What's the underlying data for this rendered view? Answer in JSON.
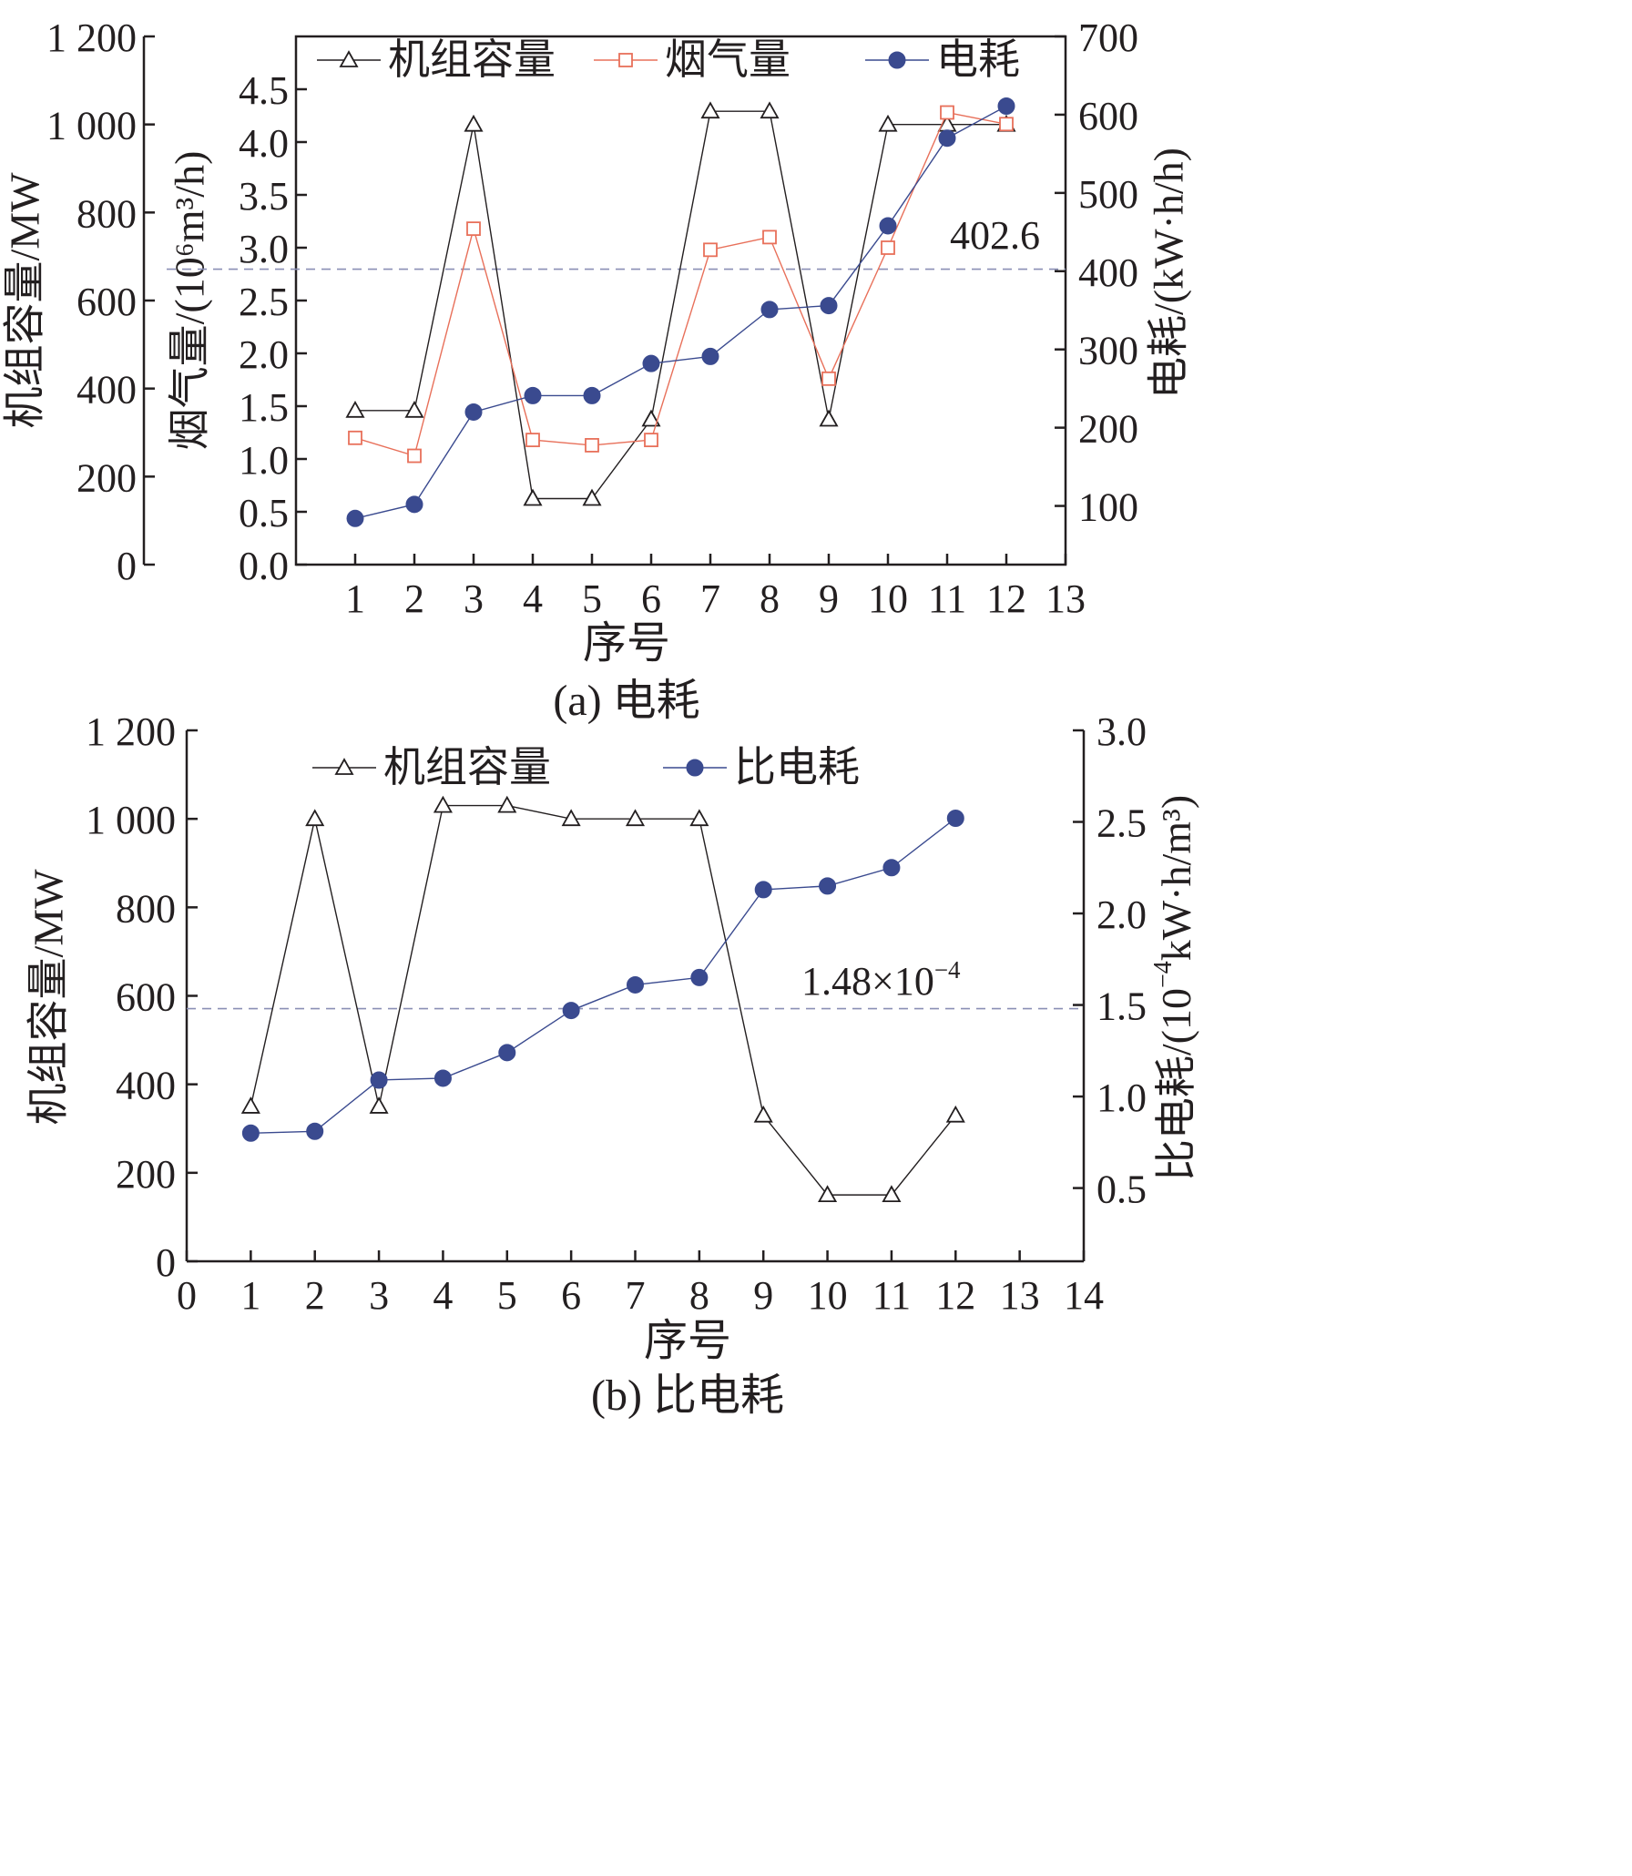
{
  "chart_data": [
    {
      "type": "line",
      "caption": "(a) 电耗",
      "xlabel": "序号",
      "ylabel_left_outer": "机组容量/MW",
      "ylabel_left_inner": "烟气量/(10⁶m³/h)",
      "ylabel_right": "电耗/(kW·h/h)",
      "xlim": [
        0,
        13
      ],
      "xticks": [
        1,
        2,
        3,
        4,
        5,
        6,
        7,
        8,
        9,
        10,
        11,
        12,
        13
      ],
      "ylim_capacity": [
        0,
        1200
      ],
      "yticks_capacity": [
        0,
        200,
        400,
        600,
        800,
        1000,
        1200
      ],
      "ytick_labels_capacity": [
        "0",
        "200",
        "400",
        "600",
        "800",
        "1 000",
        "1 200"
      ],
      "ylim_flue": [
        0,
        5
      ],
      "yticks_flue": [
        0.0,
        0.5,
        1.0,
        1.5,
        2.0,
        2.5,
        3.0,
        3.5,
        4.0,
        4.5
      ],
      "ytick_labels_flue": [
        "0.0",
        "0.5",
        "1.0",
        "1.5",
        "2.0",
        "2.5",
        "3.0",
        "3.5",
        "4.0",
        "4.5"
      ],
      "ylim_power": [
        25,
        700
      ],
      "yticks_power": [
        100,
        200,
        300,
        400,
        500,
        600,
        700
      ],
      "ytick_labels_power": [
        "100",
        "200",
        "300",
        "400",
        "500",
        "600",
        "700"
      ],
      "x": [
        1,
        2,
        3,
        4,
        5,
        6,
        7,
        8,
        9,
        10,
        11,
        12
      ],
      "series": [
        {
          "name": "机组容量",
          "axis": "capacity",
          "color": "#231f20",
          "marker": "triangle",
          "values": [
            350,
            350,
            1000,
            150,
            150,
            330,
            1030,
            1030,
            330,
            1000,
            1000,
            1000
          ]
        },
        {
          "name": "烟气量",
          "axis": "flue",
          "color": "#e8705a",
          "marker": "square",
          "values": [
            1.2,
            1.03,
            3.18,
            1.18,
            1.13,
            1.18,
            2.98,
            3.1,
            1.76,
            3.0,
            4.28,
            4.17
          ]
        },
        {
          "name": "电耗",
          "axis": "power",
          "color": "#3a4a8f",
          "marker": "circle",
          "values": [
            84,
            102,
            220,
            241,
            241,
            282,
            291,
            351,
            356,
            458,
            570,
            611
          ]
        }
      ],
      "reference_line": {
        "axis": "power",
        "value": 402.6,
        "label": "402.6",
        "color": "#8a8fb5"
      },
      "legend_position": "top"
    },
    {
      "type": "line",
      "caption": "(b) 比电耗",
      "xlabel": "序号",
      "ylabel_left": "机组容量/MW",
      "ylabel_right_prefix": "比电耗/(10",
      "ylabel_right_exp": "−4",
      "ylabel_right_suffix": "kW·h/m³)",
      "xlim": [
        0,
        14
      ],
      "xticks": [
        0,
        1,
        2,
        3,
        4,
        5,
        6,
        7,
        8,
        9,
        10,
        11,
        12,
        13,
        14
      ],
      "ylim_capacity": [
        0,
        1200
      ],
      "yticks_capacity": [
        0,
        200,
        400,
        600,
        800,
        1000,
        1200
      ],
      "ytick_labels_capacity": [
        "0",
        "200",
        "400",
        "600",
        "800",
        "1 000",
        "1 200"
      ],
      "ylim_specific": [
        0.1,
        3.0
      ],
      "yticks_specific": [
        0.5,
        1.0,
        1.5,
        2.0,
        2.5,
        3.0
      ],
      "ytick_labels_specific": [
        "0.5",
        "1.0",
        "1.5",
        "2.0",
        "2.5",
        "3.0"
      ],
      "x": [
        1,
        2,
        3,
        4,
        5,
        6,
        7,
        8,
        9,
        10,
        11,
        12
      ],
      "series": [
        {
          "name": "机组容量",
          "axis": "capacity",
          "color": "#231f20",
          "marker": "triangle",
          "values": [
            350,
            1000,
            350,
            1030,
            1030,
            1000,
            1000,
            1000,
            330,
            150,
            150,
            330
          ]
        },
        {
          "name": "比电耗",
          "axis": "specific",
          "color": "#3a4a8f",
          "marker": "circle",
          "values": [
            0.8,
            0.81,
            1.09,
            1.1,
            1.24,
            1.47,
            1.61,
            1.65,
            2.13,
            2.15,
            2.25,
            2.52
          ]
        }
      ],
      "reference_line": {
        "axis": "specific",
        "value": 1.48,
        "label_base": "1.48×10",
        "label_exp": "−4",
        "color": "#8a8fb5"
      },
      "legend_position": "top"
    }
  ]
}
